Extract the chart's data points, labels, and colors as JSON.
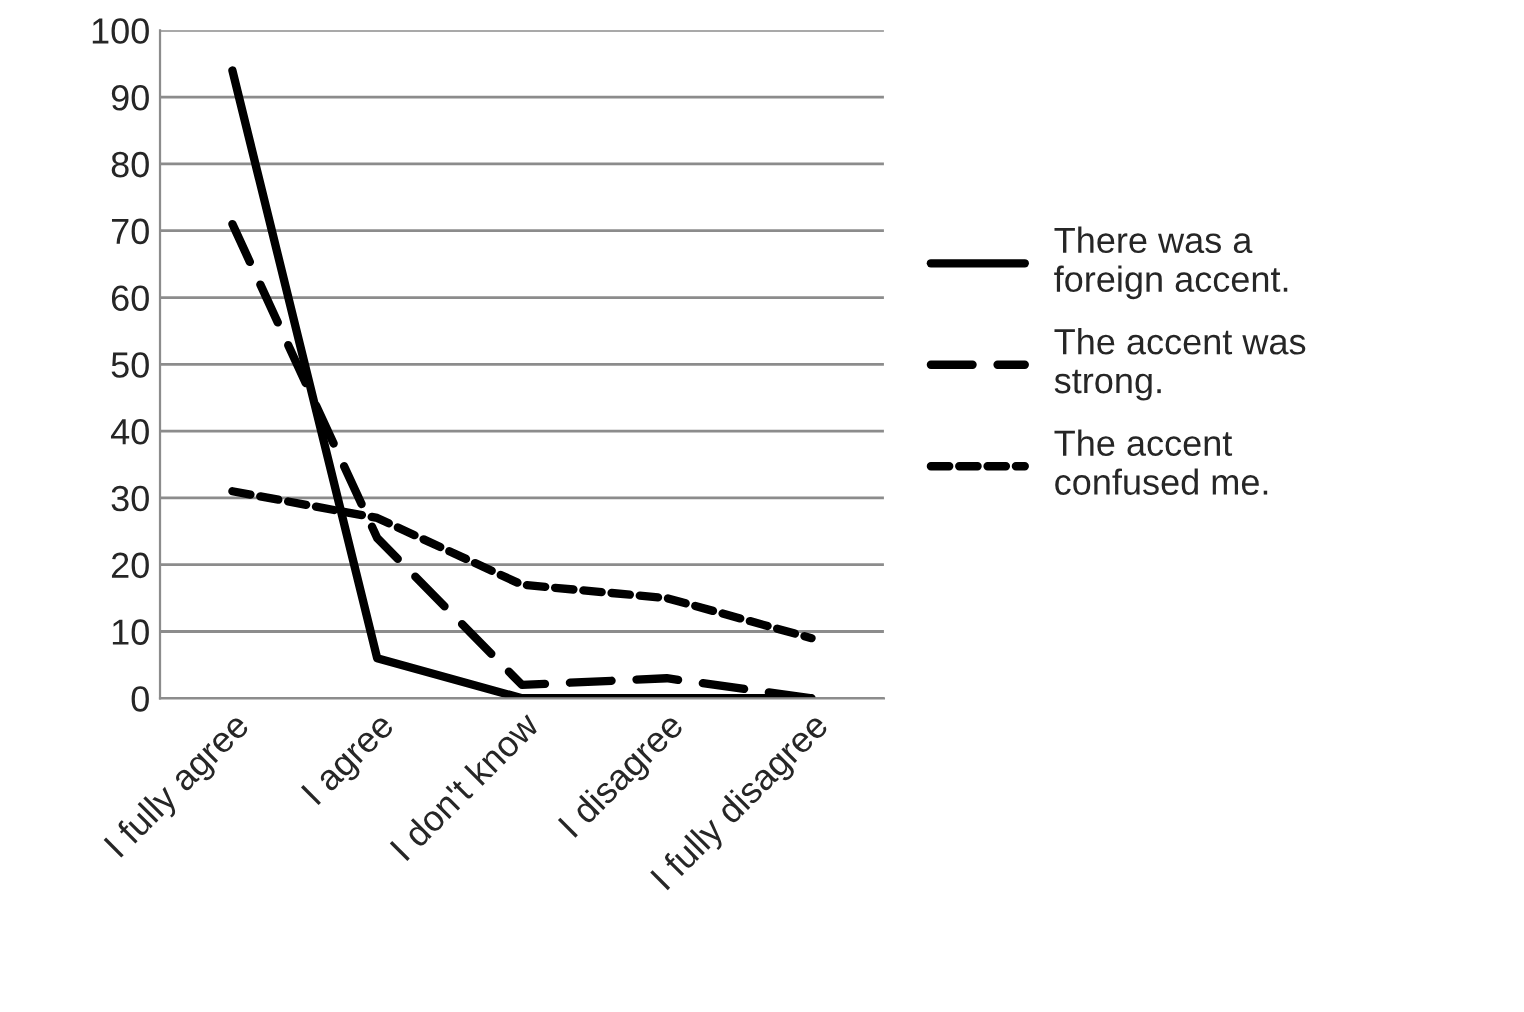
{
  "chart_data": {
    "type": "line",
    "categories": [
      "I fully agree",
      "I agree",
      "I don't know",
      "I disagree",
      "I fully disagree"
    ],
    "series": [
      {
        "name": "There was a\nforeign accent.",
        "color": "#000000",
        "line_style": "solid",
        "values": [
          94,
          6,
          0,
          0,
          0
        ]
      },
      {
        "name": "The accent was\nstrong.",
        "color": "#000000",
        "line_style": "dashed",
        "values": [
          71,
          24,
          2,
          3,
          0
        ]
      },
      {
        "name": "The accent\nconfused me.",
        "color": "#000000",
        "line_style": "dotted",
        "values": [
          31,
          27,
          17,
          15,
          9
        ]
      }
    ],
    "ylim": [
      0,
      100
    ],
    "yticks": [
      0,
      10,
      20,
      30,
      40,
      50,
      60,
      70,
      80,
      90,
      100
    ],
    "grid": "y",
    "legend": "right"
  }
}
